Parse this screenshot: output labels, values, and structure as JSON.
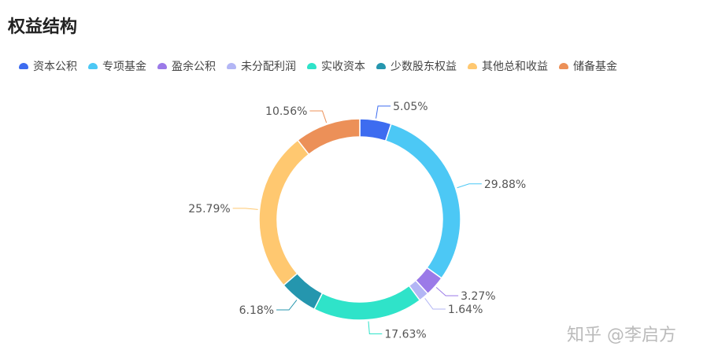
{
  "title": "权益结构",
  "watermark": "知乎 @李启方",
  "chart_data": {
    "type": "pie",
    "variant": "donut",
    "title": "权益结构",
    "legend_position": "top",
    "categories": [
      "资本公积",
      "专项基金",
      "盈余公积",
      "未分配利润",
      "实收资本",
      "少数股东权益",
      "其他总和收益",
      "储备基金"
    ],
    "values": [
      5.05,
      29.88,
      3.27,
      1.64,
      17.63,
      6.18,
      25.79,
      10.56
    ],
    "labels": [
      "5.05%",
      "29.88%",
      "3.27%",
      "1.64%",
      "17.63%",
      "6.18%",
      "25.79%",
      "10.56%"
    ],
    "colors": [
      "#3d6cf0",
      "#4cc8f5",
      "#9b7ae8",
      "#b3b6f5",
      "#2fe3c9",
      "#2596ae",
      "#ffc870",
      "#ec9058"
    ]
  }
}
